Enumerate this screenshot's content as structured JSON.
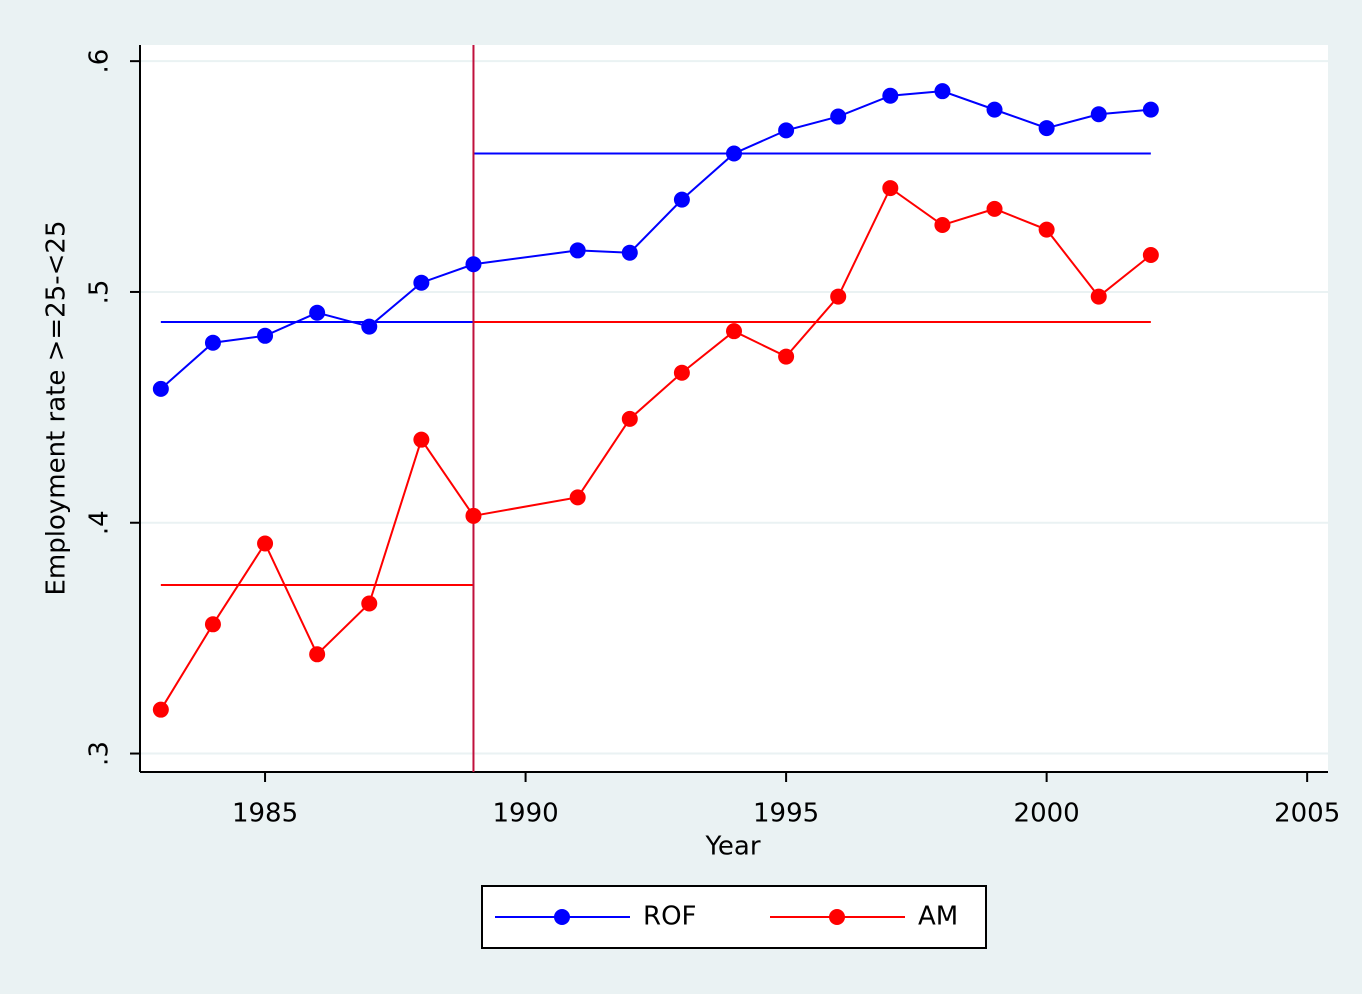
{
  "chart_data": {
    "type": "line",
    "x_label": "Year",
    "y_label": "Employment rate >=25-<25",
    "x": [
      1983,
      1984,
      1985,
      1986,
      1987,
      1988,
      1989,
      1991,
      1992,
      1993,
      1994,
      1995,
      1996,
      1997,
      1998,
      1999,
      2000,
      2001,
      2002
    ],
    "series": [
      {
        "name": "ROF",
        "color": "#0000ff",
        "values": [
          0.458,
          0.478,
          0.481,
          0.491,
          0.485,
          0.504,
          0.512,
          0.518,
          0.517,
          0.54,
          0.56,
          0.57,
          0.576,
          0.585,
          0.587,
          0.579,
          0.571,
          0.577,
          0.579
        ]
      },
      {
        "name": "AM",
        "color": "#ff0000",
        "values": [
          0.319,
          0.356,
          0.391,
          0.343,
          0.365,
          0.436,
          0.403,
          0.411,
          0.445,
          0.465,
          0.483,
          0.472,
          0.498,
          0.545,
          0.529,
          0.536,
          0.527,
          0.498,
          0.516
        ]
      }
    ],
    "hlines": [
      {
        "x": [
          1983,
          1989
        ],
        "y": 0.487,
        "color": "#0000ff"
      },
      {
        "x": [
          1989,
          2002
        ],
        "y": 0.56,
        "color": "#0000ff"
      },
      {
        "x": [
          1983,
          1989
        ],
        "y": 0.373,
        "color": "#ff0000"
      },
      {
        "x": [
          1989,
          2002
        ],
        "y": 0.487,
        "color": "#ff0000"
      }
    ],
    "xline": {
      "x": 1989,
      "color": "#c0103c"
    },
    "xlim": [
      1982.6,
      2005.4
    ],
    "ylim": [
      0.292,
      0.607
    ],
    "xticks": [
      1985,
      1990,
      1995,
      2000,
      2005
    ],
    "yticks": [
      {
        "value": 0.3,
        "label": ".3"
      },
      {
        "value": 0.4,
        "label": ".4"
      },
      {
        "value": 0.5,
        "label": ".5"
      },
      {
        "value": 0.6,
        "label": ".6"
      }
    ],
    "grid": true,
    "legend": "bottom"
  }
}
